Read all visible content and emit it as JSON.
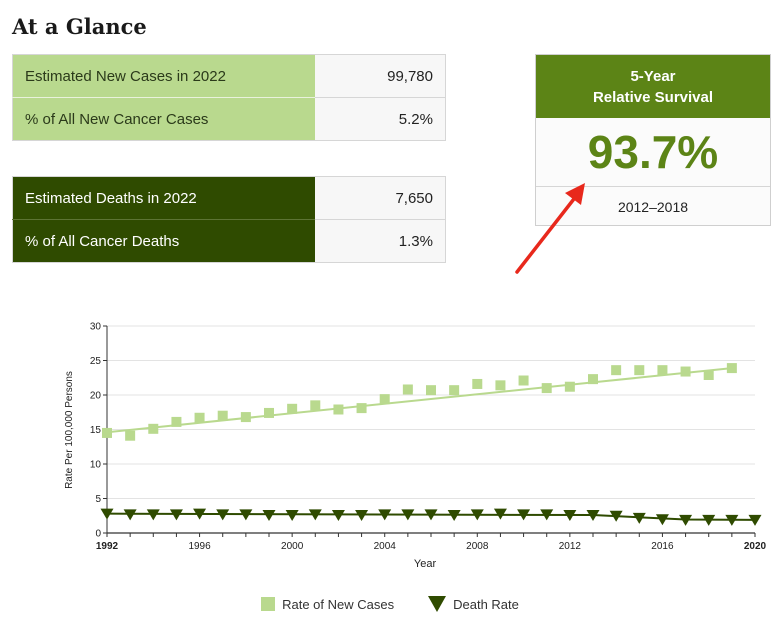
{
  "page": {
    "title": "At a Glance"
  },
  "new_cases": [
    {
      "label": "Estimated New Cases in 2022",
      "value": "99,780"
    },
    {
      "label": "% of All New Cancer Cases",
      "value": "5.2%"
    }
  ],
  "deaths": [
    {
      "label": "Estimated Deaths in 2022",
      "value": "7,650"
    },
    {
      "label": "% of All Cancer Deaths",
      "value": "1.3%"
    }
  ],
  "survival": {
    "heading_line1": "5-Year",
    "heading_line2": "Relative Survival",
    "value": "93.7%",
    "period": "2012–2018"
  },
  "colors": {
    "new_cases": "#b9d98e",
    "deaths": "#2f4b00",
    "accent": "#5c8416",
    "arrow": "#e8281c"
  },
  "chart_data": {
    "type": "scatter",
    "xlabel": "Year",
    "ylabel": "Rate Per 100,000 Persons",
    "xlim": [
      1992,
      2020
    ],
    "ylim": [
      0,
      30
    ],
    "x_ticks": [
      1992,
      1996,
      2000,
      2004,
      2008,
      2012,
      2016,
      2020
    ],
    "y_ticks": [
      0,
      5,
      10,
      15,
      20,
      25,
      30
    ],
    "grid": "horizontal",
    "legend_position": "bottom-center",
    "series": [
      {
        "name": "Rate of New Cases",
        "marker": "square",
        "x": [
          1992,
          1993,
          1994,
          1995,
          1996,
          1997,
          1998,
          1999,
          2000,
          2001,
          2002,
          2003,
          2004,
          2005,
          2006,
          2007,
          2008,
          2009,
          2010,
          2011,
          2012,
          2013,
          2014,
          2015,
          2016,
          2017,
          2018,
          2019
        ],
        "y": [
          14.5,
          14.1,
          15.1,
          16.1,
          16.7,
          17.0,
          16.8,
          17.4,
          18.0,
          18.5,
          17.9,
          18.1,
          19.4,
          20.8,
          20.7,
          20.7,
          21.6,
          21.4,
          22.1,
          21.0,
          21.2,
          22.3,
          23.6,
          23.6,
          23.6,
          23.4,
          22.9,
          23.9
        ],
        "trend": {
          "x": [
            1992,
            2019
          ],
          "y": [
            14.6,
            23.9
          ]
        }
      },
      {
        "name": "Death Rate",
        "marker": "triangle-down",
        "x": [
          1992,
          1993,
          1994,
          1995,
          1996,
          1997,
          1998,
          1999,
          2000,
          2001,
          2002,
          2003,
          2004,
          2005,
          2006,
          2007,
          2008,
          2009,
          2010,
          2011,
          2012,
          2013,
          2014,
          2015,
          2016,
          2017,
          2018,
          2019,
          2020
        ],
        "y": [
          2.8,
          2.7,
          2.7,
          2.7,
          2.8,
          2.7,
          2.7,
          2.6,
          2.6,
          2.7,
          2.6,
          2.6,
          2.7,
          2.7,
          2.7,
          2.6,
          2.7,
          2.8,
          2.7,
          2.7,
          2.6,
          2.6,
          2.5,
          2.2,
          2.0,
          1.9,
          1.9,
          1.9,
          1.9
        ],
        "trend": {
          "x": [
            1992,
            2013,
            2017,
            2020
          ],
          "y": [
            2.8,
            2.6,
            1.95,
            1.9
          ]
        }
      }
    ]
  }
}
